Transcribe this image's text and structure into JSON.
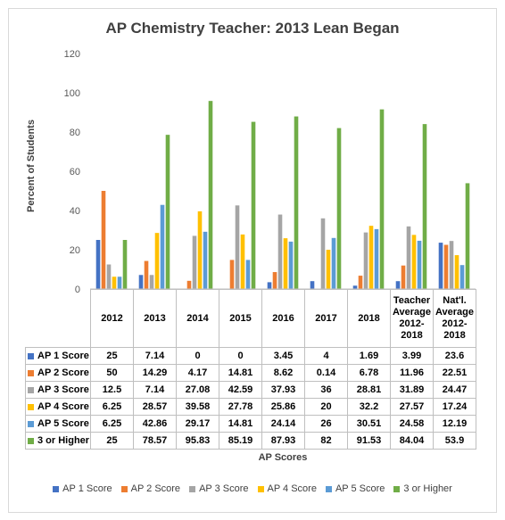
{
  "chart_data": {
    "type": "bar",
    "title": "AP Chemistry Teacher: 2013 Lean Began",
    "xlabel": "AP Scores",
    "ylabel": "Percent of Students",
    "ylim": [
      0,
      120
    ],
    "yticks": [
      "0",
      "20",
      "40",
      "60",
      "80",
      "100",
      "120"
    ],
    "grid": false,
    "legend_position": "bottom",
    "data_table": true,
    "categories": [
      "2012",
      "2013",
      "2014",
      "2015",
      "2016",
      "2017",
      "2018",
      "Teacher Average 2012-2018",
      "Nat'l. Average 2012-2018"
    ],
    "series": [
      {
        "name": "AP 1 Score",
        "color": "#4472c4",
        "labels": [
          "25",
          "7.14",
          "0",
          "0",
          "3.45",
          "4",
          "1.69",
          "3.99",
          "23.6"
        ],
        "values": [
          25,
          7.14,
          0,
          0,
          3.45,
          4,
          1.69,
          3.99,
          23.6
        ]
      },
      {
        "name": "AP 2 Score",
        "color": "#ed7d31",
        "labels": [
          "50",
          "14.29",
          "4.17",
          "14.81",
          "8.62",
          "0.14",
          "6.78",
          "11.96",
          "22.51"
        ],
        "values": [
          50,
          14.29,
          4.17,
          14.81,
          8.62,
          0.14,
          6.78,
          11.96,
          22.51
        ]
      },
      {
        "name": "AP 3 Score",
        "color": "#a5a5a5",
        "labels": [
          "12.5",
          "7.14",
          "27.08",
          "42.59",
          "37.93",
          "36",
          "28.81",
          "31.89",
          "24.47"
        ],
        "values": [
          12.5,
          7.14,
          27.08,
          42.59,
          37.93,
          36,
          28.81,
          31.89,
          24.47
        ]
      },
      {
        "name": "AP 4 Score",
        "color": "#ffc000",
        "labels": [
          "6.25",
          "28.57",
          "39.58",
          "27.78",
          "25.86",
          "20",
          "32.2",
          "27.57",
          "17.24"
        ],
        "values": [
          6.25,
          28.57,
          39.58,
          27.78,
          25.86,
          20,
          32.2,
          27.57,
          17.24
        ]
      },
      {
        "name": "AP 5 Score",
        "color": "#5b9bd5",
        "labels": [
          "6.25",
          "42.86",
          "29.17",
          "14.81",
          "24.14",
          "26",
          "30.51",
          "24.58",
          "12.19"
        ],
        "values": [
          6.25,
          42.86,
          29.17,
          14.81,
          24.14,
          26,
          30.51,
          24.58,
          12.19
        ]
      },
      {
        "name": "3 or Higher",
        "color": "#70ad47",
        "labels": [
          "25",
          "78.57",
          "95.83",
          "85.19",
          "87.93",
          "82",
          "91.53",
          "84.04",
          "53.9"
        ],
        "values": [
          25,
          78.57,
          95.83,
          85.19,
          87.93,
          82,
          91.53,
          84.04,
          53.9
        ]
      }
    ]
  }
}
